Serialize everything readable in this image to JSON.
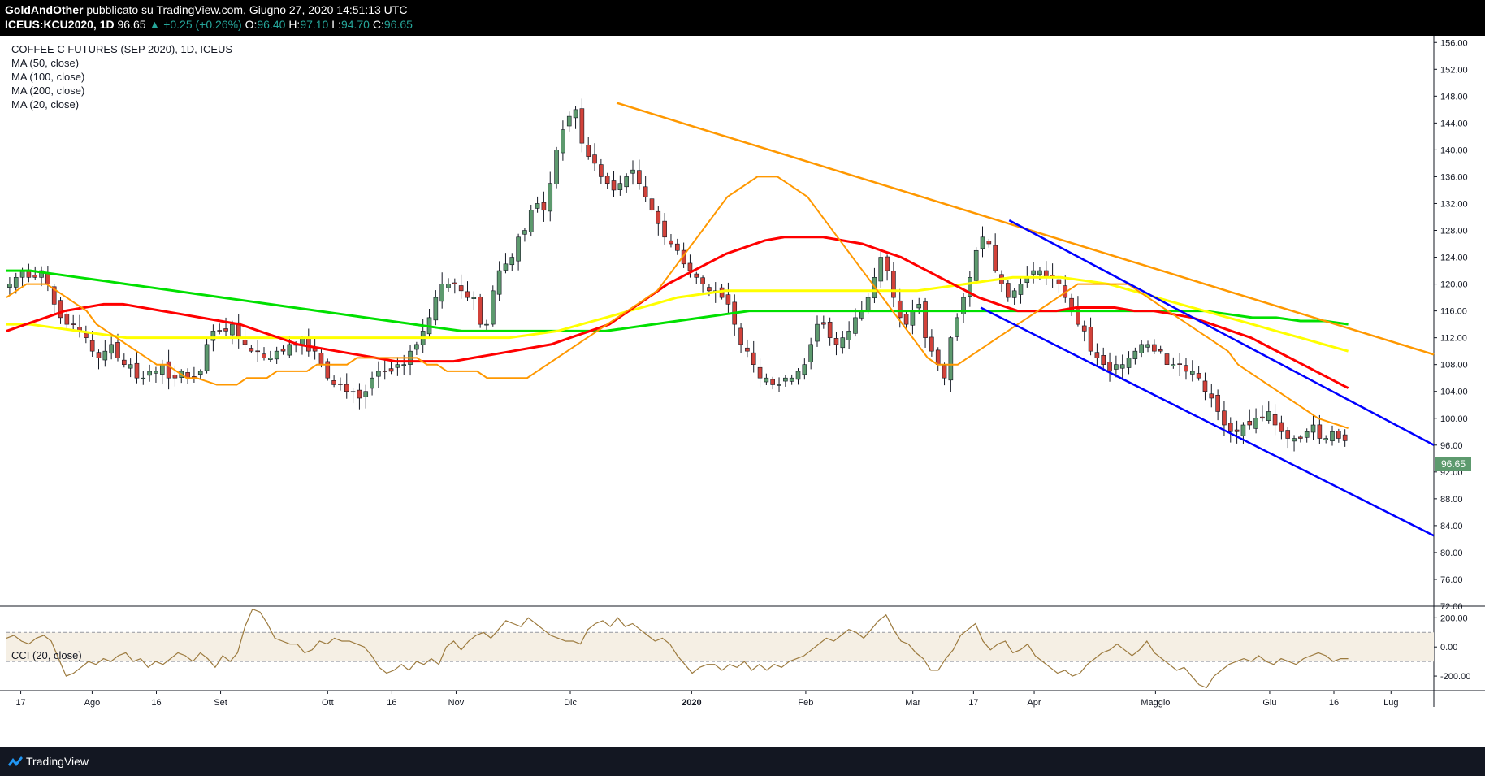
{
  "header": {
    "author": "GoldAndOther",
    "published": "pubblicato su TradingView.com, Giugno 27, 2020 14:51:13 UTC",
    "symbol": "ICEUS:KCU2020, 1D",
    "last": "96.65",
    "change": "+0.25 (+0.26%)",
    "open_label": "O:",
    "open": "96.40",
    "high_label": "H:",
    "high": "97.10",
    "low_label": "L:",
    "low": "94.70",
    "close_label": "C:",
    "close": "96.65"
  },
  "legend": {
    "title": "COFFEE C FUTURES (SEP 2020), 1D, ICEUS",
    "ma50": "MA (50, close)",
    "ma100": "MA (100, close)",
    "ma200": "MA (200, close)",
    "ma20": "MA (20, close)",
    "cci": "CCI (20, close)"
  },
  "price_label": "96.65",
  "footer": {
    "brand": "TradingView"
  },
  "colors": {
    "up": "#26a69a",
    "up_candle": "#5d9a6e",
    "down_candle": "#d2423a",
    "ma50": "#ff0000",
    "ma100": "#ffff00",
    "ma200": "#00e000",
    "ma20": "#ff9800",
    "trend_orange": "#ff9800",
    "channel": "#0000ff",
    "cci": "#9c7a3e"
  },
  "chart_data": [
    {
      "type": "candlestick",
      "title": "COFFEE C FUTURES (SEP 2020), 1D, ICEUS",
      "y_ticks": [
        "156.00",
        "152.00",
        "148.00",
        "144.00",
        "140.00",
        "136.00",
        "132.00",
        "128.00",
        "124.00",
        "120.00",
        "116.00",
        "112.00",
        "108.00",
        "104.00",
        "100.00",
        "96.00",
        "92.00",
        "88.00",
        "84.00",
        "80.00",
        "76.00",
        "72.00"
      ],
      "ylim": [
        72,
        157
      ],
      "x_ticks": [
        {
          "label": "17",
          "t": 0.02
        },
        {
          "label": "Ago",
          "t": 0.12
        },
        {
          "label": "16",
          "t": 0.21
        },
        {
          "label": "Set",
          "t": 0.3
        },
        {
          "label": "Ott",
          "t": 0.45
        },
        {
          "label": "16",
          "t": 0.54
        },
        {
          "label": "Nov",
          "t": 0.63
        },
        {
          "label": "Dic",
          "t": 0.79
        },
        {
          "label": "2020",
          "t": 0.96
        },
        {
          "label": "Feb",
          "t": 1.12
        },
        {
          "label": "Mar",
          "t": 1.27
        },
        {
          "label": "17",
          "t": 1.355
        },
        {
          "label": "Apr",
          "t": 1.44
        },
        {
          "label": "Maggio",
          "t": 1.61
        },
        {
          "label": "Giu",
          "t": 1.77
        },
        {
          "label": "16",
          "t": 1.86
        },
        {
          "label": "Lug",
          "t": 1.94
        }
      ],
      "closes": [
        120,
        121,
        122,
        121,
        121,
        122,
        120,
        117,
        115,
        114,
        114,
        113,
        112,
        110,
        109,
        110,
        111,
        109,
        108,
        108,
        106,
        106,
        107,
        107,
        108,
        106,
        106,
        107,
        106,
        106,
        107,
        111,
        113,
        113,
        113,
        114,
        112,
        111,
        110,
        110,
        109,
        109,
        110,
        110,
        111,
        111,
        112,
        110,
        110,
        108,
        106,
        105,
        105,
        104,
        104,
        103,
        104,
        106,
        107,
        107,
        107,
        108,
        108,
        110,
        111,
        113,
        115,
        118,
        120,
        120,
        120,
        119,
        118,
        118,
        114,
        114,
        119,
        122,
        123,
        124,
        127,
        128,
        131,
        132,
        131,
        135,
        140,
        143,
        145,
        146,
        141,
        139,
        138,
        136,
        135,
        134,
        135,
        136,
        137,
        135,
        133,
        131,
        129,
        127,
        126,
        125,
        123,
        122,
        121,
        120,
        119,
        119,
        118,
        117,
        114,
        111,
        110,
        108,
        106,
        106,
        105,
        105,
        106,
        106,
        107,
        108,
        111,
        114,
        114,
        112,
        111,
        112,
        113,
        115,
        116,
        118,
        121,
        124,
        122,
        118,
        115,
        114,
        116,
        117,
        112,
        110,
        108,
        106,
        112,
        115,
        118,
        121,
        125,
        127,
        126,
        122,
        120,
        118,
        119,
        120,
        121,
        122,
        122,
        121,
        121,
        120,
        118,
        116,
        114,
        113,
        110,
        109,
        108,
        107,
        108,
        108,
        109,
        110,
        111,
        111,
        110,
        110,
        108,
        108,
        108,
        107,
        107,
        106,
        104,
        103,
        101,
        99,
        98,
        98,
        99,
        99,
        100,
        100,
        101,
        99,
        98,
        97,
        97,
        97,
        98,
        99,
        97,
        97,
        98,
        97,
        96.65
      ],
      "ma20": [
        118,
        119,
        120,
        120,
        120,
        119,
        118,
        117,
        116,
        114,
        113,
        112,
        111,
        110,
        109,
        108,
        108,
        107,
        106,
        106,
        105.5,
        105,
        105,
        105,
        106,
        106,
        106,
        107,
        107,
        107,
        107,
        108,
        108,
        108,
        108,
        109,
        109,
        109,
        109,
        109,
        109,
        109,
        108,
        108,
        107,
        107,
        107,
        107,
        106,
        106,
        106,
        106,
        106,
        107,
        108,
        109,
        110,
        111,
        112,
        113,
        114,
        115,
        116,
        117,
        118,
        119,
        121,
        123,
        125,
        127,
        129,
        131,
        133,
        134,
        135,
        136,
        136,
        136,
        135,
        134,
        133,
        131,
        129,
        127,
        125,
        123,
        121,
        119,
        117,
        115,
        113,
        111,
        109,
        108,
        108,
        108,
        109,
        110,
        111,
        112,
        113,
        114,
        115,
        116,
        117,
        118,
        119,
        120,
        120,
        120,
        120,
        120,
        120,
        119,
        118,
        117,
        116,
        115,
        114,
        113,
        112,
        111,
        110,
        108,
        107,
        106,
        105,
        104,
        103,
        102,
        101,
        100,
        99.5,
        99,
        98.5
      ],
      "ma50": [
        113,
        114,
        115,
        116,
        116.5,
        117,
        117,
        116.5,
        116,
        115.5,
        115,
        114.5,
        114,
        113,
        112,
        111,
        110.5,
        110,
        109.5,
        109,
        108.5,
        108.5,
        108.5,
        108.5,
        109,
        109.5,
        110,
        110.5,
        111,
        112,
        113,
        114,
        116,
        118,
        120,
        121.5,
        123,
        124.5,
        125.5,
        126.5,
        127,
        127,
        127,
        126.5,
        126,
        125,
        124,
        122.5,
        121,
        119.5,
        118,
        117,
        116,
        116,
        116,
        116.5,
        116.5,
        116.5,
        116,
        116,
        115.5,
        115,
        114,
        113,
        112,
        110.5,
        109,
        107.5,
        106,
        104.5
      ],
      "ma100": [
        114,
        114,
        113.5,
        113,
        112.5,
        112,
        112,
        112,
        112,
        112,
        112,
        112,
        112,
        112,
        112,
        112,
        112,
        112,
        112,
        112,
        112,
        112,
        112.5,
        113,
        114,
        115,
        116,
        117,
        118,
        118.5,
        119,
        119,
        119,
        119,
        119,
        119,
        119,
        119,
        119,
        119.5,
        120,
        120.5,
        121,
        121,
        121,
        120.5,
        120,
        119,
        118,
        117,
        116,
        115,
        114,
        113,
        112,
        111,
        110
      ],
      "ma200": [
        122,
        122,
        121.5,
        121,
        120.5,
        120,
        119.5,
        119,
        118.5,
        118,
        117.5,
        117,
        116.5,
        116,
        115.5,
        115,
        114.5,
        114,
        113.5,
        113,
        113,
        113,
        113,
        113,
        113,
        113,
        113.5,
        114,
        114.5,
        115,
        115.5,
        116,
        116,
        116,
        116,
        116,
        116,
        116,
        116,
        116,
        116,
        116,
        116,
        116,
        116,
        116,
        116,
        116,
        116,
        116,
        116,
        115.5,
        115,
        115,
        114.5,
        114.5,
        114
      ],
      "trendline_orange": {
        "from": [
          0.855,
          147
        ],
        "to": [
          2.0,
          109.5
        ]
      },
      "channel_upper": {
        "from": [
          1.405,
          129.5
        ],
        "to": [
          2.0,
          96
        ]
      },
      "channel_lower": {
        "from": [
          1.365,
          116.5
        ],
        "to": [
          2.0,
          82.5
        ]
      }
    },
    {
      "type": "line",
      "title": "CCI (20, close)",
      "y_ticks": [
        "200.00",
        "0.00",
        "-200.00"
      ],
      "ylim": [
        -300,
        280
      ],
      "band": [
        -100,
        100
      ],
      "values": [
        60,
        80,
        40,
        20,
        60,
        80,
        40,
        -80,
        -200,
        -180,
        -140,
        -100,
        -120,
        -80,
        -100,
        -60,
        -40,
        -100,
        -80,
        -140,
        -100,
        -120,
        -80,
        -40,
        -60,
        -100,
        -40,
        -80,
        -140,
        -60,
        -100,
        -40,
        140,
        260,
        240,
        160,
        60,
        40,
        20,
        20,
        -40,
        -20,
        40,
        20,
        60,
        40,
        40,
        20,
        0,
        -60,
        -140,
        -180,
        -160,
        -120,
        -160,
        -100,
        -120,
        -80,
        -120,
        0,
        40,
        -20,
        40,
        80,
        100,
        60,
        120,
        180,
        160,
        140,
        200,
        160,
        120,
        80,
        60,
        40,
        40,
        20,
        120,
        160,
        180,
        140,
        200,
        140,
        160,
        120,
        80,
        40,
        60,
        20,
        -60,
        -120,
        -180,
        -140,
        -120,
        -120,
        -160,
        -120,
        -140,
        -100,
        -160,
        -120,
        -160,
        -120,
        -140,
        -100,
        -80,
        -60,
        -20,
        20,
        60,
        40,
        80,
        120,
        100,
        60,
        120,
        180,
        220,
        120,
        40,
        20,
        -40,
        -80,
        -160,
        -160,
        -80,
        -20,
        80,
        120,
        160,
        40,
        -20,
        20,
        40,
        -40,
        -20,
        20,
        -60,
        -100,
        -140,
        -180,
        -160,
        -200,
        -180,
        -120,
        -80,
        -40,
        -20,
        20,
        -20,
        -60,
        -20,
        40,
        -40,
        -80,
        -120,
        -160,
        -140,
        -200,
        -260,
        -280,
        -200,
        -160,
        -120,
        -100,
        -80,
        -100,
        -60,
        -100,
        -120,
        -80,
        -100,
        -120,
        -80,
        -60,
        -40,
        -60,
        -100,
        -80,
        -80
      ]
    }
  ]
}
